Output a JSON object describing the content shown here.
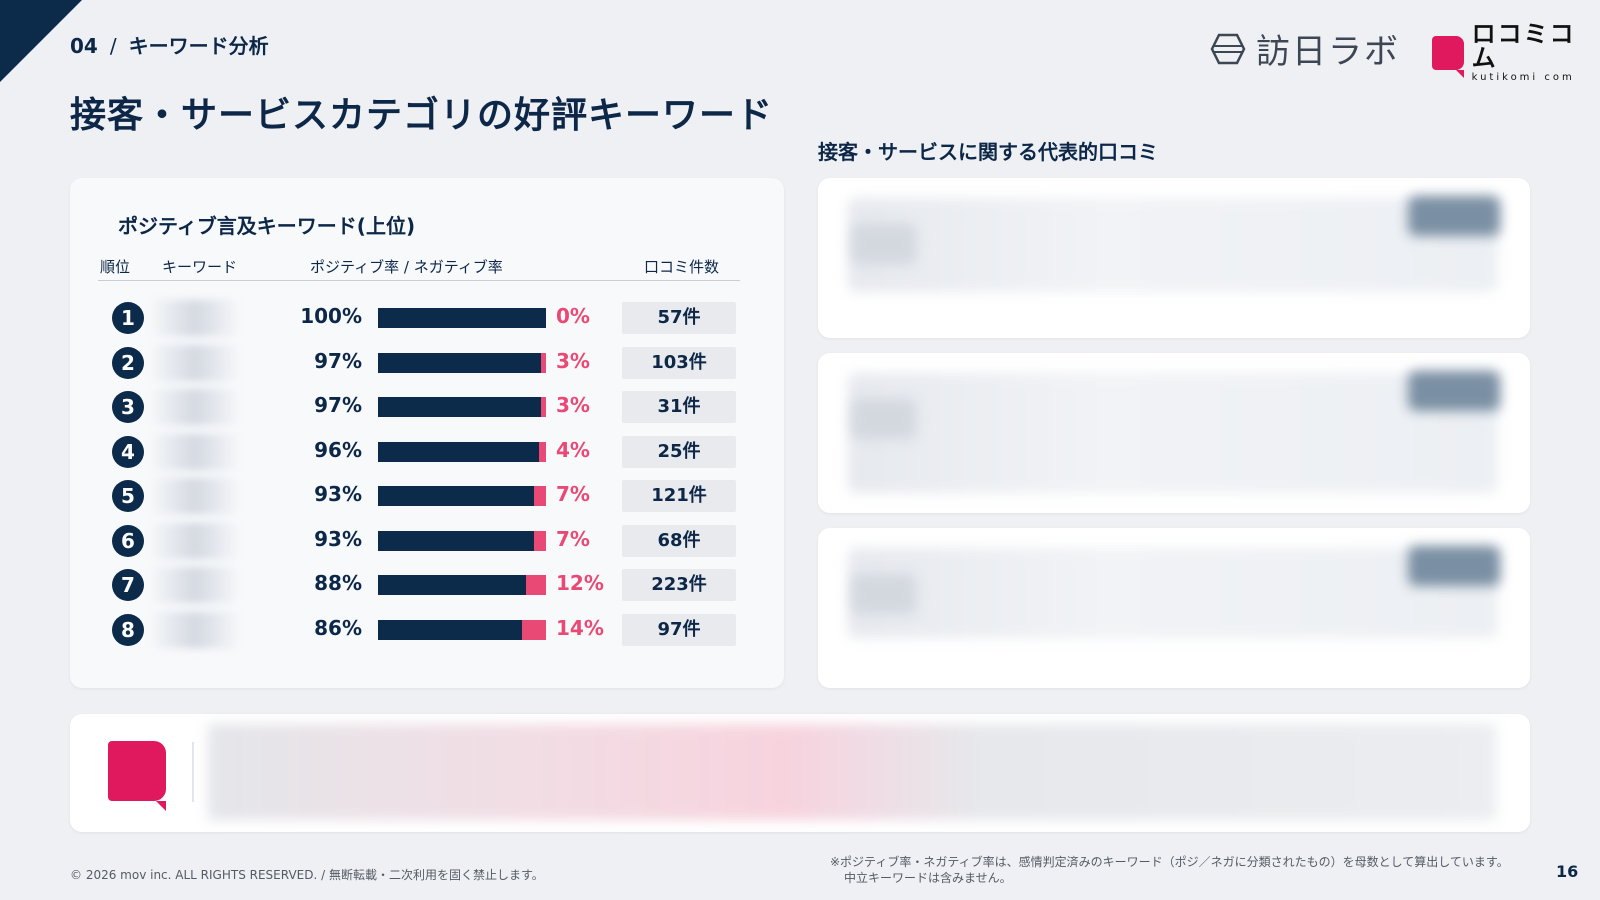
{
  "header": {
    "section_number": "04",
    "section_sep": "/",
    "section_label": "キーワード分析",
    "title": "接客・サービスカテゴリの好評キーワード"
  },
  "logos": {
    "lab_text": "訪日ラボ",
    "kuchikomi_jp": "ロコミコム",
    "kuchikomi_en": "kutikomi com"
  },
  "left_panel": {
    "heading": "ポジティブ言及キーワード(上位)",
    "columns": {
      "rank": "順位",
      "keyword": "キーワード",
      "rate": "ポジティブ率 / ネガティブ率",
      "count": "口コミ件数"
    },
    "rows": [
      {
        "rank": "1",
        "positive_label": "100%",
        "negative_label": "0%",
        "positive": 100,
        "count": "57件"
      },
      {
        "rank": "2",
        "positive_label": "97%",
        "negative_label": "3%",
        "positive": 97,
        "count": "103件"
      },
      {
        "rank": "3",
        "positive_label": "97%",
        "negative_label": "3%",
        "positive": 97,
        "count": "31件"
      },
      {
        "rank": "4",
        "positive_label": "96%",
        "negative_label": "4%",
        "positive": 96,
        "count": "25件"
      },
      {
        "rank": "5",
        "positive_label": "93%",
        "negative_label": "7%",
        "positive": 93,
        "count": "121件"
      },
      {
        "rank": "6",
        "positive_label": "93%",
        "negative_label": "7%",
        "positive": 93,
        "count": "68件"
      },
      {
        "rank": "7",
        "positive_label": "88%",
        "negative_label": "12%",
        "positive": 88,
        "count": "223件"
      },
      {
        "rank": "8",
        "positive_label": "86%",
        "negative_label": "14%",
        "positive": 86,
        "count": "97件"
      }
    ]
  },
  "right_panel": {
    "title": "接客・サービスに関する代表的口コミ"
  },
  "footer": {
    "copyright": "© 2026 mov inc. ALL RIGHTS RESERVED. / 無断転載・二次利用を固く禁止します。",
    "note_line1": "※ポジティブ率・ネガティブ率は、感情判定済みのキーワード（ポジ／ネガに分類されたもの）を母数として算出しています。",
    "note_line2": "中立キーワードは含みません。",
    "page_number": "16"
  },
  "colors": {
    "navy": "#0c2a4a",
    "negative": "#e84a75",
    "brand_pink": "#e0185e"
  }
}
